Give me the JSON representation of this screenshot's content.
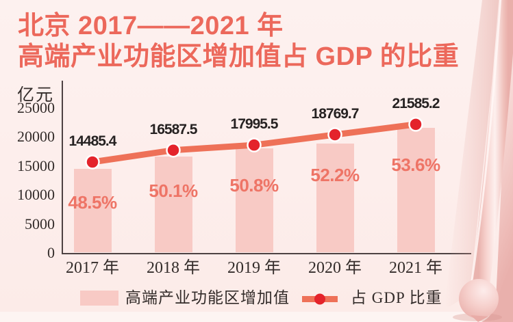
{
  "title": {
    "line1": "北京 2017——2021 年",
    "line2": "高端产业功能区增加值占 GDP 的比重"
  },
  "chart_data": {
    "type": "bar",
    "title": "北京2017——2021年高端产业功能区增加值占GDP的比重",
    "ylabel": "亿元",
    "categories": [
      "2017 年",
      "2018 年",
      "2019 年",
      "2020 年",
      "2021 年"
    ],
    "series": [
      {
        "name": "高端产业功能区增加值",
        "type": "bar",
        "unit": "亿元",
        "values": [
          14485.4,
          16587.5,
          17995.5,
          18769.7,
          21585.2
        ],
        "value_labels": [
          "14485.4",
          "16587.5",
          "17995.5",
          "18769.7",
          "21585.2"
        ]
      },
      {
        "name": "占GDP比重",
        "type": "line",
        "unit": "%",
        "values": [
          48.5,
          50.1,
          50.8,
          52.2,
          53.6
        ],
        "value_labels": [
          "48.5%",
          "50.1%",
          "50.8%",
          "52.2%",
          "53.6%"
        ]
      }
    ],
    "y_axis": {
      "min": 0,
      "max": 25000,
      "tick_step": 5000,
      "tick_labels": [
        "0",
        "5000",
        "10000",
        "15000",
        "20000",
        "25000"
      ]
    },
    "grid": false,
    "legend_position": "bottom"
  },
  "legend": {
    "bar_label": "高端产业功能区增加值",
    "line_label": "占 GDP 比重"
  },
  "colors": {
    "background": "#fdefed",
    "title_text": "#ec685b",
    "bar_fill": "#f8cac5",
    "line_stroke": "#ee7158",
    "dot_fill": "#e4232b",
    "percent_text": "#ee7466",
    "value_text": "#262222",
    "serif_text": "#332c2a",
    "axis_line": "#4d4243"
  }
}
